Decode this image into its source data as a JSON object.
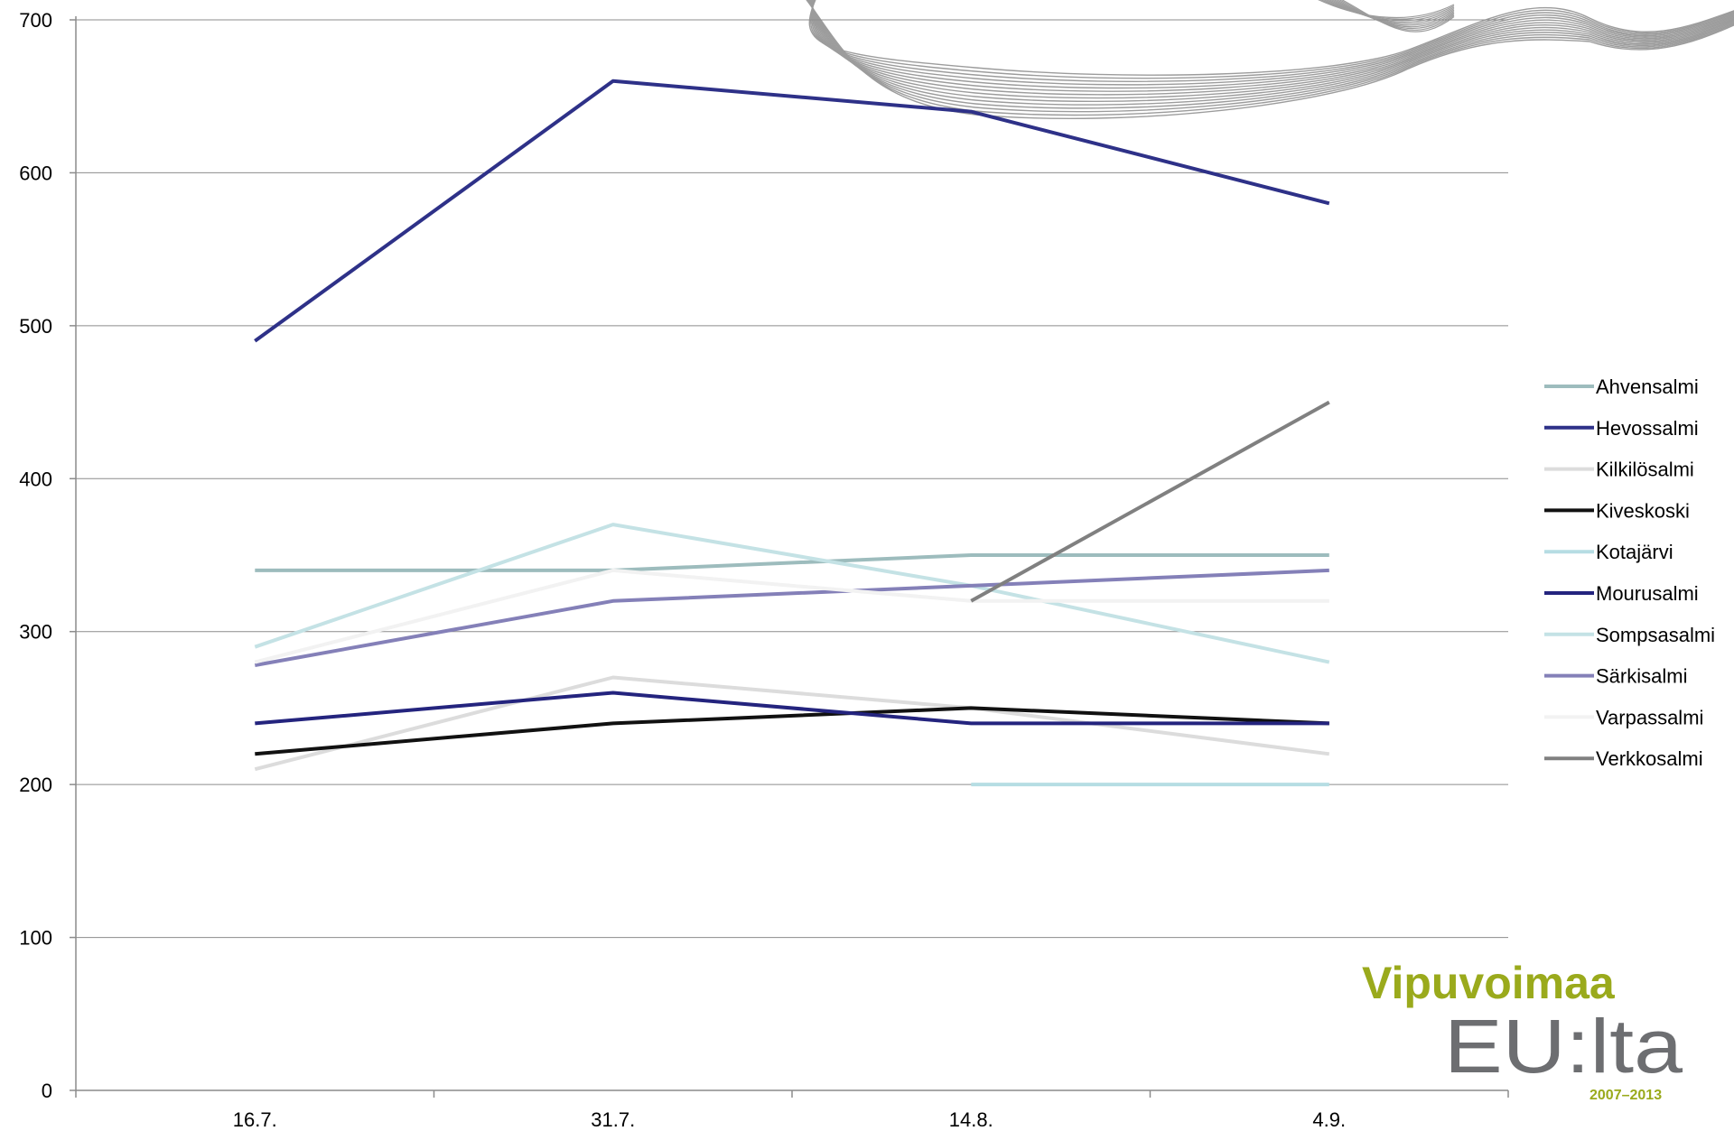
{
  "chart_data": {
    "type": "line",
    "title": "",
    "xlabel": "",
    "ylabel": "",
    "categories": [
      "16.7.",
      "31.7.",
      "14.8.",
      "4.9."
    ],
    "ylim": [
      0,
      700
    ],
    "yticks": [
      0,
      100,
      200,
      300,
      400,
      500,
      600,
      700
    ],
    "grid": "horizontal",
    "legend_position": "right",
    "series": [
      {
        "name": "Ahvensalmi",
        "color": "#9dbcbd",
        "values": [
          340,
          340,
          350,
          350
        ]
      },
      {
        "name": "Hevossalmi",
        "color": "#2e3188",
        "values": [
          490,
          660,
          640,
          580
        ]
      },
      {
        "name": "Kilkilösalmi",
        "color": "#dcdcdc",
        "values": [
          210,
          270,
          250,
          220
        ]
      },
      {
        "name": "Kiveskoski",
        "color": "#111111",
        "values": [
          220,
          240,
          250,
          240
        ]
      },
      {
        "name": "Kotajärvi",
        "color": "#b6dde3",
        "values": [
          null,
          null,
          200,
          200
        ]
      },
      {
        "name": "Mourusalmi",
        "color": "#24247e",
        "values": [
          240,
          260,
          240,
          240
        ]
      },
      {
        "name": "Sompsasalmi",
        "color": "#c4e2e5",
        "values": [
          290,
          370,
          330,
          280
        ]
      },
      {
        "name": "Särkisalmi",
        "color": "#8480b8",
        "values": [
          278,
          320,
          330,
          340
        ]
      },
      {
        "name": "Varpassalmi",
        "color": "#f2f2f2",
        "values": [
          280,
          340,
          320,
          320
        ]
      },
      {
        "name": "Verkkosalmi",
        "color": "#808080",
        "values": [
          null,
          null,
          320,
          450
        ]
      }
    ]
  },
  "logo": {
    "line1": "Vipuvoimaa",
    "line2": "EU:lta",
    "years": "2007–2013",
    "color_green": "#9aaa1c",
    "color_gray": "#6d6e71"
  },
  "decor": {
    "ribbon_color": "#9c9c9c"
  }
}
